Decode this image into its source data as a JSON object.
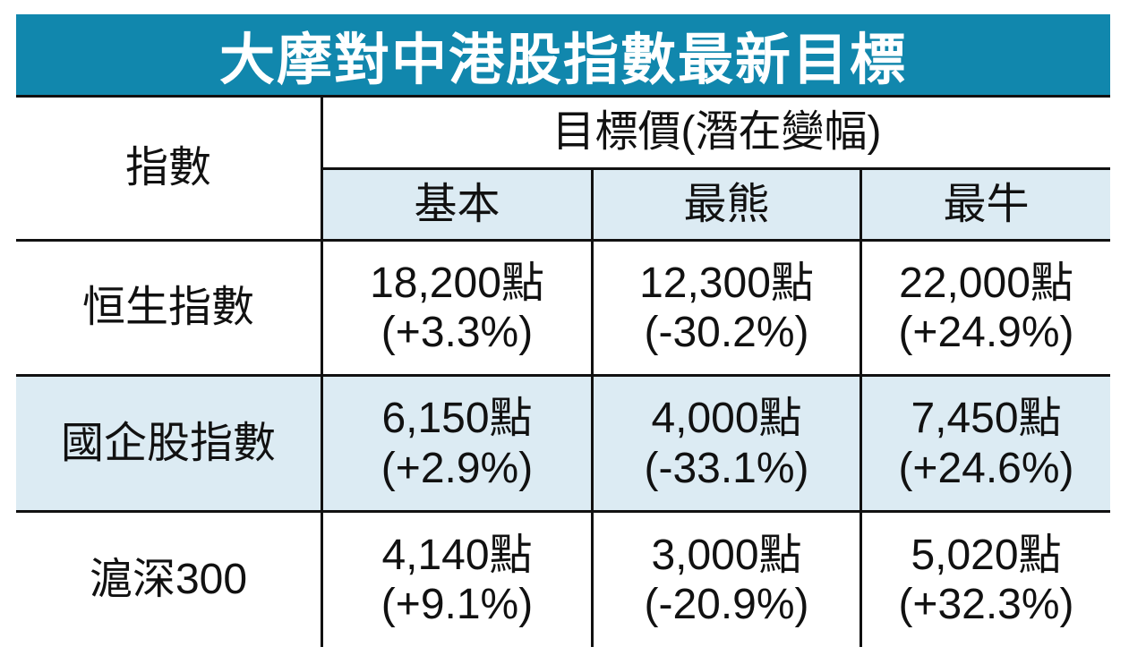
{
  "title": "大摩對中港股指數最新目標",
  "header": {
    "index_label": "指數",
    "target_label": "目標價(潛在變幅)",
    "scenarios": [
      "基本",
      "最熊",
      "最牛"
    ]
  },
  "rows": [
    {
      "name": "恒生指數",
      "cells": [
        {
          "points": "18,200點",
          "change": "(+3.3%)"
        },
        {
          "points": "12,300點",
          "change": "(-30.2%)"
        },
        {
          "points": "22,000點",
          "change": "(+24.9%)"
        }
      ]
    },
    {
      "name": "國企股指數",
      "cells": [
        {
          "points": "6,150點",
          "change": "(+2.9%)"
        },
        {
          "points": "4,000點",
          "change": "(-33.1%)"
        },
        {
          "points": "7,450點",
          "change": "(+24.6%)"
        }
      ]
    },
    {
      "name": "滬深300",
      "cells": [
        {
          "points": "4,140點",
          "change": "(+9.1%)"
        },
        {
          "points": "3,000點",
          "change": "(-20.9%)"
        },
        {
          "points": "5,020點",
          "change": "(+32.3%)"
        }
      ]
    }
  ]
}
